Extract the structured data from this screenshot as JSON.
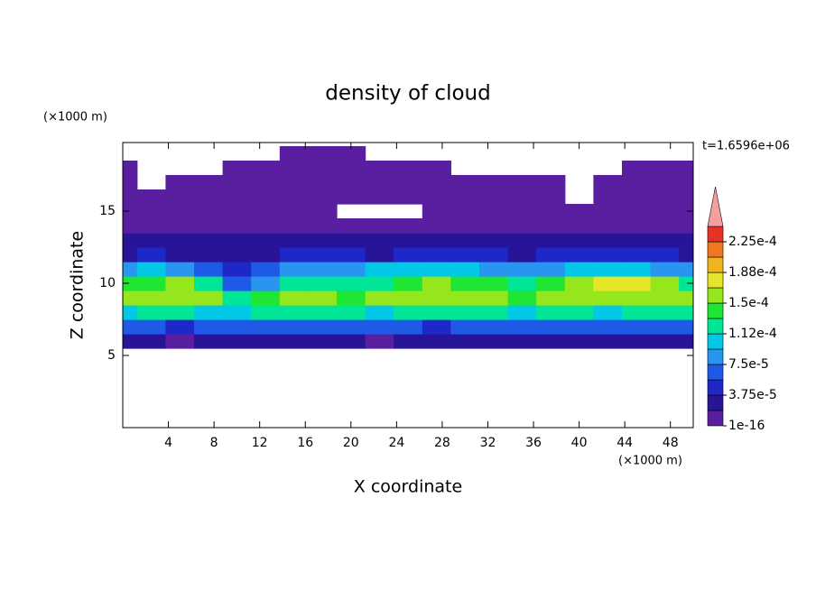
{
  "chart_data": {
    "type": "contour",
    "title": "density of cloud",
    "annotation": "t=1.6596e+06",
    "x_label": "X coordinate",
    "y_label": "Z coordinate",
    "x_unit": "(×1000 m)",
    "y_unit": "(×1000 m)",
    "xlim": [
      0,
      50
    ],
    "ylim": [
      0,
      19.75
    ],
    "xticks": [
      4,
      8,
      12,
      16,
      20,
      24,
      28,
      32,
      36,
      40,
      44,
      48
    ],
    "yticks": [
      5,
      10,
      15
    ],
    "x": [
      0,
      2.5,
      5,
      7.5,
      10,
      12.5,
      15,
      17.5,
      20,
      22.5,
      25,
      27.5,
      30,
      32.5,
      35,
      37.5,
      40,
      42.5,
      45,
      47.5,
      50
    ],
    "y": [
      6,
      7,
      8,
      9,
      10,
      11,
      12,
      13,
      14,
      15,
      16,
      17,
      18,
      19
    ],
    "values": [
      [
        2e-05,
        2e-05,
        1.5e-05,
        2e-05,
        2e-05,
        2.5e-05,
        2e-05,
        2e-05,
        2e-05,
        1.5e-05,
        2e-05,
        2e-05,
        2.5e-05,
        2e-05,
        2e-05,
        2e-05,
        2e-05,
        2e-05,
        2e-05,
        2.5e-05,
        2e-05
      ],
      [
        6e-05,
        6.5e-05,
        5.5e-05,
        6e-05,
        7e-05,
        6e-05,
        6.5e-05,
        7e-05,
        6e-05,
        6.5e-05,
        6e-05,
        5e-05,
        6e-05,
        6.5e-05,
        7e-05,
        6e-05,
        6e-05,
        6.5e-05,
        7e-05,
        6e-05,
        6e-05
      ],
      [
        0.00011,
        0.000115,
        0.00012,
        0.00011,
        0.0001,
        0.00012,
        0.000125,
        0.00012,
        0.000115,
        0.00011,
        0.00012,
        0.000125,
        0.00012,
        0.000115,
        0.00011,
        0.00012,
        0.000115,
        0.00011,
        0.00012,
        0.000125,
        0.00012
      ],
      [
        0.000155,
        0.00016,
        0.000165,
        0.00015,
        0.00013,
        0.000145,
        0.000155,
        0.00015,
        0.000145,
        0.00015,
        0.000155,
        0.00016,
        0.000155,
        0.00015,
        0.000145,
        0.00015,
        0.00016,
        0.000165,
        0.00016,
        0.000155,
        0.00015
      ],
      [
        0.000135,
        0.000145,
        0.00015,
        0.00012,
        6e-05,
        8e-05,
        0.00013,
        0.00013,
        0.00012,
        0.00013,
        0.000135,
        0.00016,
        0.000145,
        0.000135,
        0.00013,
        0.000145,
        0.000165,
        0.000175,
        0.00017,
        0.000155,
        0.00013
      ],
      [
        9e-05,
        0.0001,
        9e-05,
        7e-05,
        4e-05,
        6e-05,
        8e-05,
        9e-05,
        9e-05,
        0.0001,
        0.0001,
        0.00011,
        0.0001,
        9e-05,
        9e-05,
        9e-05,
        0.0001,
        0.00011,
        0.0001,
        9e-05,
        8e-05
      ],
      [
        3.5e-05,
        4e-05,
        3e-05,
        3e-05,
        2.5e-05,
        3e-05,
        4e-05,
        4.5e-05,
        4e-05,
        3.5e-05,
        4e-05,
        4e-05,
        4.5e-05,
        4e-05,
        3.5e-05,
        4e-05,
        4.5e-05,
        5e-05,
        4.5e-05,
        4e-05,
        3.5e-05
      ],
      [
        2e-05,
        2.5e-05,
        2e-05,
        2e-05,
        2e-05,
        2.5e-05,
        2e-05,
        2e-05,
        2e-05,
        2e-05,
        2.5e-05,
        2e-05,
        2e-05,
        2e-05,
        2.5e-05,
        2e-05,
        2e-05,
        2.5e-05,
        2e-05,
        2e-05,
        2e-05
      ],
      [
        1e-05,
        1e-05,
        1.2e-05,
        1e-05,
        1e-05,
        1e-05,
        8e-06,
        1e-05,
        1e-05,
        1e-05,
        1e-05,
        1e-05,
        1e-05,
        1e-05,
        1e-05,
        1e-05,
        1e-05,
        1e-05,
        1.2e-05,
        1.5e-05,
        1.5e-05
      ],
      [
        5e-06,
        5e-06,
        5e-06,
        5e-06,
        5e-06,
        5e-06,
        5e-06,
        5e-06,
        null,
        null,
        null,
        5e-06,
        5e-06,
        5e-06,
        5e-06,
        5e-06,
        5e-06,
        5e-06,
        5e-06,
        1e-05,
        1e-05
      ],
      [
        1e-06,
        1e-06,
        1e-06,
        1e-06,
        1e-06,
        1e-06,
        1e-06,
        1e-06,
        1e-06,
        1e-06,
        1e-06,
        1e-06,
        1e-06,
        1e-06,
        1e-06,
        1e-06,
        null,
        1e-06,
        1e-06,
        1e-06,
        1e-06
      ],
      [
        1e-06,
        null,
        1e-06,
        1e-06,
        1e-06,
        1e-06,
        1e-06,
        1e-06,
        1e-06,
        1e-06,
        1e-06,
        1e-06,
        1e-06,
        1e-06,
        1e-06,
        1e-06,
        null,
        1e-06,
        1e-06,
        1e-06,
        1e-06
      ],
      [
        1e-06,
        null,
        null,
        null,
        1e-06,
        1e-06,
        1e-06,
        1e-06,
        1e-06,
        1e-06,
        1e-06,
        1e-06,
        null,
        null,
        null,
        null,
        null,
        null,
        1e-06,
        1e-06,
        1e-06
      ],
      [
        null,
        null,
        null,
        null,
        null,
        null,
        1e-06,
        1e-06,
        1e-06,
        null,
        null,
        null,
        null,
        null,
        null,
        null,
        null,
        null,
        null,
        null,
        null
      ]
    ],
    "colorbar": {
      "levels": [
        1e-16,
        1.875e-05,
        3.75e-05,
        5.625e-05,
        7.5e-05,
        9.375e-05,
        0.0001125,
        0.00013125,
        0.00015,
        0.00016875,
        0.0001875,
        0.00020625,
        0.000225,
        0.00024375
      ],
      "colors": [
        "#5a1ea0",
        "#281496",
        "#1e28c8",
        "#1e5ae6",
        "#2896f0",
        "#00c8e6",
        "#00e696",
        "#1ee632",
        "#96e61e",
        "#e6e628",
        "#f0b41e",
        "#f07820",
        "#e63228",
        "#f5a0a0"
      ],
      "ticks": [
        {
          "value": 1e-16,
          "label": "1e-16"
        },
        {
          "value": 3.75e-05,
          "label": "3.75e-5"
        },
        {
          "value": 7.5e-05,
          "label": "7.5e-5"
        },
        {
          "value": 0.0001125,
          "label": "1.12e-4"
        },
        {
          "value": 0.00015,
          "label": "1.5e-4"
        },
        {
          "value": 0.0001875,
          "label": "1.88e-4"
        },
        {
          "value": 0.000225,
          "label": "2.25e-4"
        }
      ]
    }
  }
}
